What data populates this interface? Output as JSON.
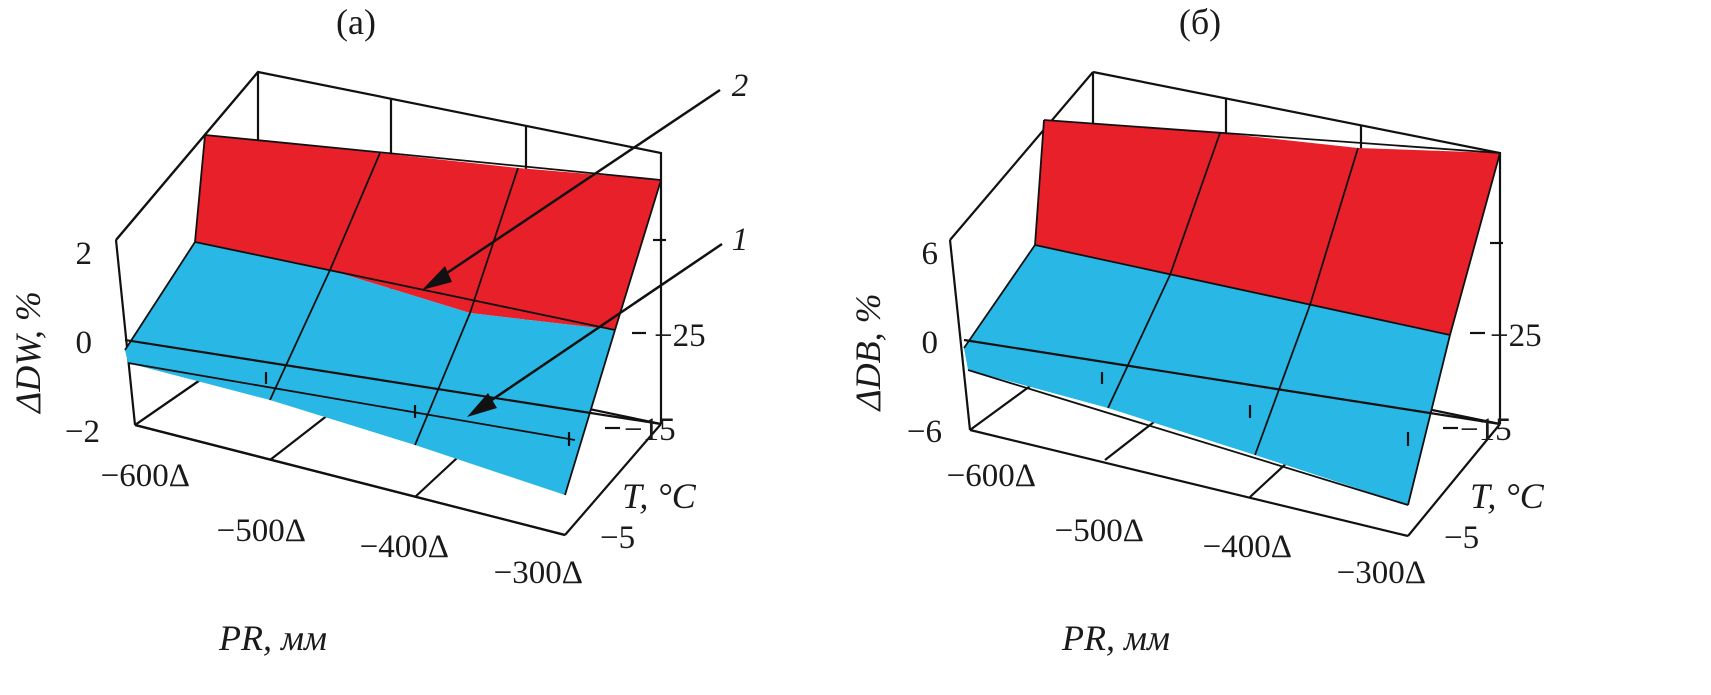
{
  "colors": {
    "surface_1": "#29b7e6",
    "surface_2": "#e8202a",
    "line": "#111111"
  },
  "chart_data": [
    {
      "type": "surface",
      "title": "(a)",
      "zlabel": "ΔDW, %",
      "xlabel": "PR, мм",
      "ylabel": "T, °C",
      "x_ticks": [
        "−600Δ",
        "−500Δ",
        "−400Δ",
        "−300Δ"
      ],
      "y_ticks": [
        "−5",
        "−15",
        "−25"
      ],
      "z_ticks": [
        "−2",
        "0",
        "2"
      ],
      "series": [
        {
          "name": "1",
          "values": [
            [
              -0.2,
              -0.5,
              -0.9,
              -1.3
            ],
            [
              -0.1,
              -0.3,
              -0.6,
              -1.0
            ],
            [
              0.1,
              -0.1,
              -0.3,
              -0.6
            ]
          ]
        },
        {
          "name": "2",
          "values": [
            [
              1.9,
              1.9,
              1.8,
              1.7
            ],
            [
              1.0,
              0.9,
              0.7,
              0.4
            ],
            [
              0.2,
              0.0,
              -0.1,
              -0.3
            ]
          ]
        }
      ],
      "annotations": [
        "2",
        "1"
      ]
    },
    {
      "type": "surface",
      "title": "(б)",
      "zlabel": "ΔDB, %",
      "xlabel": "PR, мм",
      "ylabel": "T, °C",
      "x_ticks": [
        "−600Δ",
        "−500Δ",
        "−400Δ",
        "−300Δ"
      ],
      "y_ticks": [
        "−5",
        "−15",
        "−25"
      ],
      "z_ticks": [
        "−6",
        "0",
        "6"
      ],
      "series": [
        {
          "name": "1",
          "values": [
            [
              -1.0,
              -2.5,
              -4.0,
              -5.5
            ],
            [
              -0.5,
              -1.5,
              -2.5,
              -3.5
            ],
            [
              0.5,
              0.0,
              -0.5,
              -1.0
            ]
          ]
        },
        {
          "name": "2",
          "values": [
            [
              7.5,
              7.3,
              7.0,
              6.5
            ],
            [
              4.0,
              3.5,
              2.8,
              2.0
            ],
            [
              0.5,
              0.0,
              -0.5,
              -1.0
            ]
          ]
        }
      ]
    }
  ]
}
